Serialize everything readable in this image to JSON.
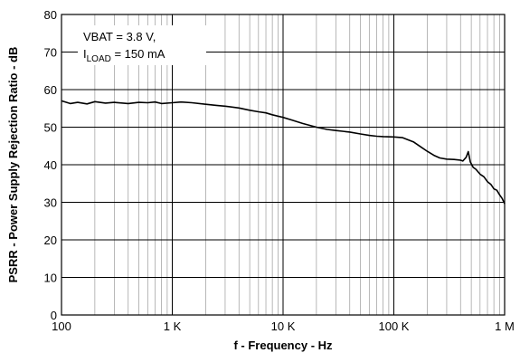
{
  "chart_data": {
    "type": "line",
    "title": "",
    "xlabel": "f - Frequency - Hz",
    "ylabel": "PSRR - Power Supply Rejection Ratio - dB",
    "x_scale": "log",
    "xlim": [
      100,
      1000000
    ],
    "ylim": [
      0,
      80
    ],
    "grid": true,
    "x_ticks": [
      {
        "value": 100,
        "label": "100"
      },
      {
        "value": 1000,
        "label": "1 K"
      },
      {
        "value": 10000,
        "label": "10 K"
      },
      {
        "value": 100000,
        "label": "100 K"
      },
      {
        "value": 1000000,
        "label": "1 M"
      }
    ],
    "y_ticks": [
      {
        "value": 0,
        "label": "0"
      },
      {
        "value": 10,
        "label": "10"
      },
      {
        "value": 20,
        "label": "20"
      },
      {
        "value": 30,
        "label": "30"
      },
      {
        "value": 40,
        "label": "40"
      },
      {
        "value": 50,
        "label": "50"
      },
      {
        "value": 60,
        "label": "60"
      },
      {
        "value": 70,
        "label": "70"
      },
      {
        "value": 80,
        "label": "80"
      }
    ],
    "annotation": {
      "line1": "VBAT = 3.8 V,",
      "line2_main": "I",
      "line2_sub": "LOAD",
      "line2_rest": " = 150 mA"
    },
    "series": [
      {
        "points": [
          [
            100,
            57
          ],
          [
            120,
            56.3
          ],
          [
            140,
            56.6
          ],
          [
            170,
            56.2
          ],
          [
            200,
            56.8
          ],
          [
            250,
            56.4
          ],
          [
            300,
            56.6
          ],
          [
            400,
            56.3
          ],
          [
            500,
            56.6
          ],
          [
            600,
            56.5
          ],
          [
            700,
            56.7
          ],
          [
            800,
            56.3
          ],
          [
            1000,
            56.5
          ],
          [
            1200,
            56.7
          ],
          [
            1500,
            56.5
          ],
          [
            2000,
            56.1
          ],
          [
            2500,
            55.8
          ],
          [
            3000,
            55.6
          ],
          [
            4000,
            55.1
          ],
          [
            5000,
            54.5
          ],
          [
            6000,
            54.1
          ],
          [
            7000,
            53.8
          ],
          [
            8000,
            53.3
          ],
          [
            10000,
            52.6
          ],
          [
            12000,
            51.9
          ],
          [
            15000,
            51.0
          ],
          [
            20000,
            50.0
          ],
          [
            25000,
            49.4
          ],
          [
            30000,
            49.1
          ],
          [
            40000,
            48.7
          ],
          [
            50000,
            48.2
          ],
          [
            60000,
            47.8
          ],
          [
            70000,
            47.6
          ],
          [
            80000,
            47.5
          ],
          [
            100000,
            47.4
          ],
          [
            120000,
            47.2
          ],
          [
            150000,
            46.1
          ],
          [
            180000,
            44.5
          ],
          [
            200000,
            43.6
          ],
          [
            230000,
            42.5
          ],
          [
            260000,
            41.8
          ],
          [
            300000,
            41.5
          ],
          [
            350000,
            41.4
          ],
          [
            400000,
            41.2
          ],
          [
            420000,
            41.0
          ],
          [
            450000,
            42.0
          ],
          [
            470000,
            43.5
          ],
          [
            490000,
            40.8
          ],
          [
            520000,
            39.3
          ],
          [
            550000,
            38.8
          ],
          [
            600000,
            37.5
          ],
          [
            650000,
            36.8
          ],
          [
            700000,
            35.5
          ],
          [
            750000,
            34.8
          ],
          [
            800000,
            33.6
          ],
          [
            850000,
            33.2
          ],
          [
            900000,
            32.0
          ],
          [
            950000,
            31.0
          ],
          [
            1000000,
            29.6
          ]
        ]
      }
    ]
  }
}
